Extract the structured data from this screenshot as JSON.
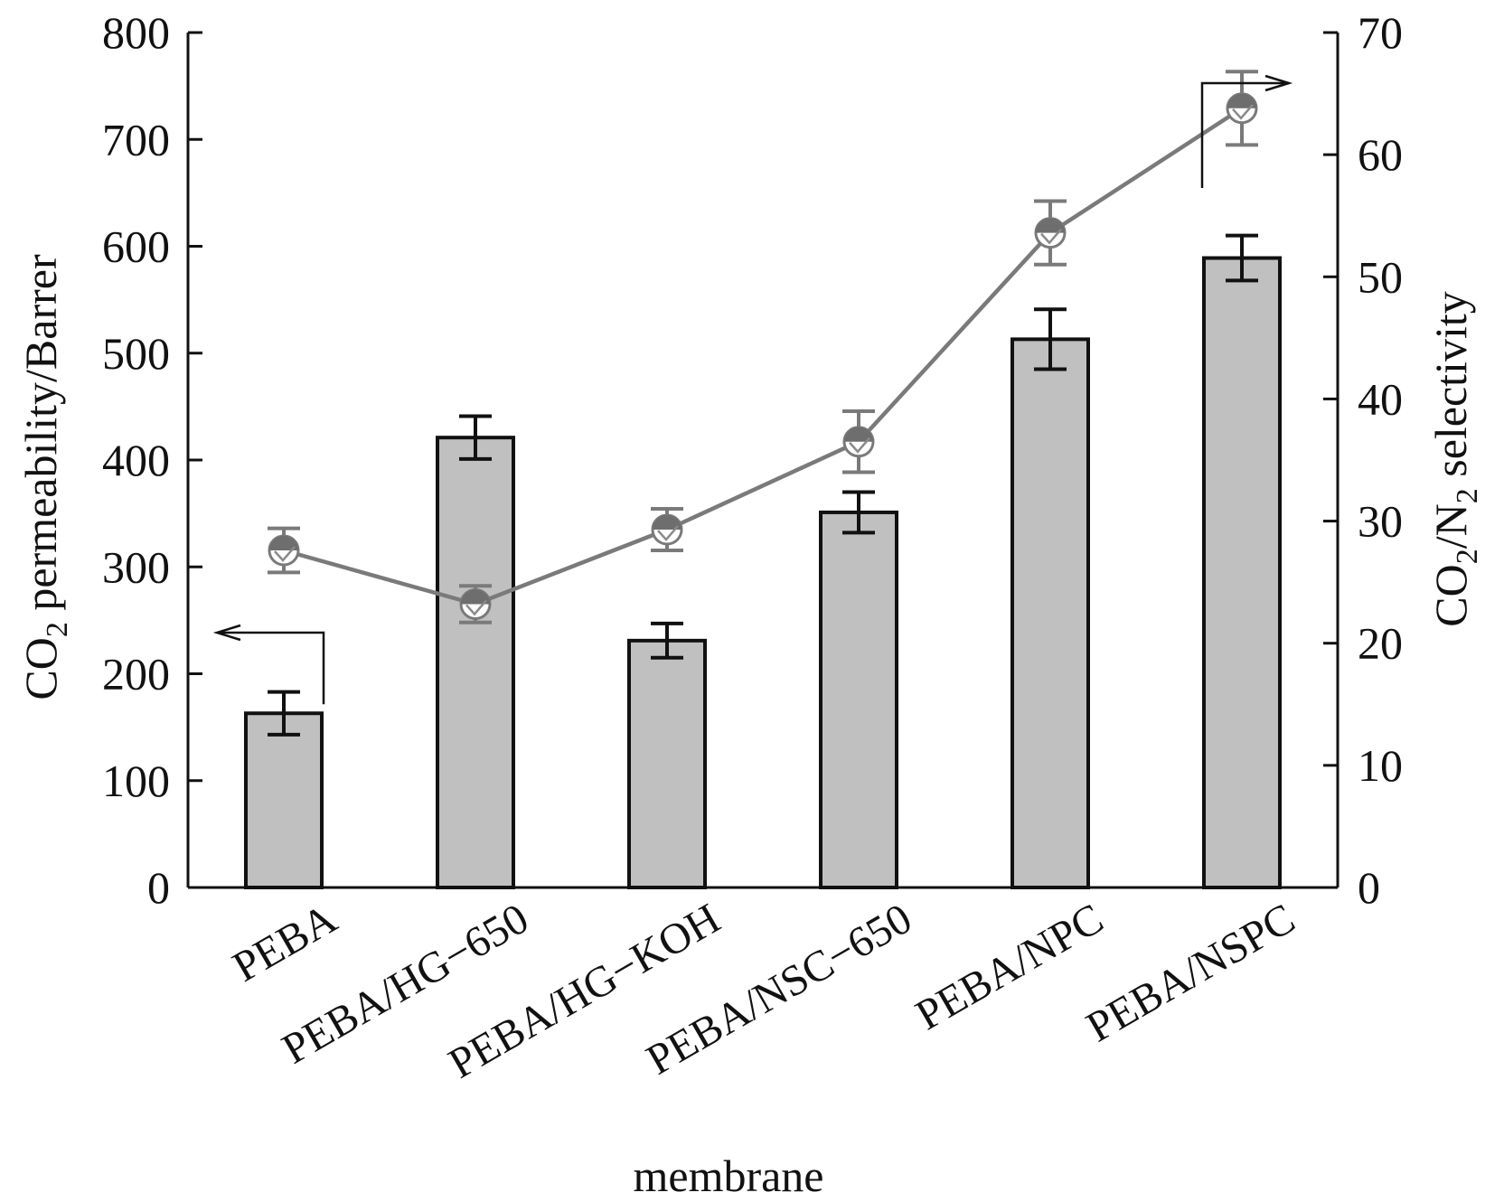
{
  "chart_data": {
    "type": "bar",
    "categories": [
      "PEBA",
      "PEBA/HG−650",
      "PEBA/HG−KOH",
      "PEBA/NSC−650",
      "PEBA/NPC",
      "PEBA/NSPC"
    ],
    "xlabel": "membrane",
    "ylabel": {
      "prefix": "CO",
      "sub": "2",
      "suffix": " permeability/Barrer"
    },
    "y2label": {
      "a": "CO",
      "a_sub": "2",
      "b": "/N",
      "b_sub": "2",
      "c": " selectivity"
    },
    "ylim": [
      0,
      800
    ],
    "y_ticks": [
      0,
      100,
      200,
      300,
      400,
      500,
      600,
      700,
      800
    ],
    "y2lim": [
      0,
      70
    ],
    "y2_ticks": [
      0,
      10,
      20,
      30,
      40,
      50,
      60,
      70
    ],
    "series": [
      {
        "type": "bar",
        "axis": "left",
        "values": [
          163,
          421,
          231,
          351,
          513,
          589
        ],
        "errors": [
          20,
          20,
          16,
          19,
          28,
          21
        ]
      },
      {
        "type": "line",
        "axis": "right",
        "values": [
          27.6,
          23.2,
          29.3,
          36.5,
          53.6,
          63.8
        ],
        "errors": [
          1.8,
          1.5,
          1.7,
          2.5,
          2.6,
          3.0
        ]
      }
    ],
    "colors": {
      "bar_fill": "#c0c0c0",
      "bar_edge": "#111111",
      "bar_error": "#111111",
      "line": "#7a7a7a",
      "marker_dark": "#6e6e6e",
      "axis": "#111111"
    },
    "annotations": [
      "arrow from PEBA bar pointing to left axis",
      "arrow from PEBA/NSPC point pointing to right axis"
    ]
  }
}
